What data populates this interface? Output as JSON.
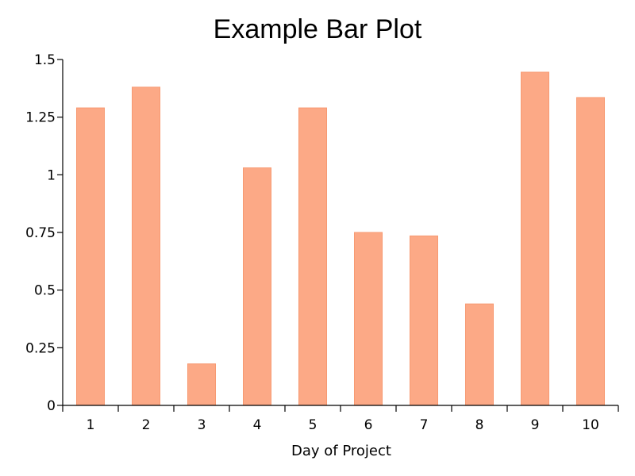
{
  "chart_data": {
    "type": "bar",
    "title": "Example Bar Plot",
    "xlabel": "Day of Project",
    "ylabel": "",
    "categories": [
      "1",
      "2",
      "3",
      "4",
      "5",
      "6",
      "7",
      "8",
      "9",
      "10"
    ],
    "values": [
      1.29,
      1.38,
      0.18,
      1.03,
      1.29,
      0.75,
      0.735,
      0.44,
      1.445,
      1.335
    ],
    "ylim": [
      0,
      1.5
    ],
    "yticks": [
      "0",
      "0.25",
      "0.5",
      "0.75",
      "1",
      "1.25",
      "1.5"
    ],
    "ytick_values": [
      0,
      0.25,
      0.5,
      0.75,
      1,
      1.25,
      1.5
    ],
    "grid": false,
    "legend": "none",
    "colors": {
      "bar_fill": "#fca986",
      "bar_stroke": "#f79a72"
    }
  }
}
